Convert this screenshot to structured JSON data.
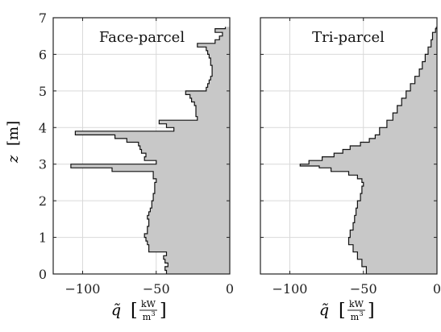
{
  "chart_data": [
    {
      "type": "area",
      "title": "Face-parcel",
      "xlabel_symbol": "q̃",
      "xlabel_unit_num": "kW",
      "xlabel_unit_den": "m",
      "xlabel_unit_exp": "3",
      "ylabel_symbol": "z",
      "ylabel_unit": "m",
      "xlim": [
        -120,
        0
      ],
      "ylim": [
        0,
        7
      ],
      "xticks": [
        -100,
        -50,
        0
      ],
      "xtick_labels": [
        "−100",
        "−50",
        "0"
      ],
      "yticks": [
        0,
        1,
        2,
        3,
        4,
        5,
        6,
        7
      ],
      "ytick_labels": [
        "0",
        "1",
        "2",
        "3",
        "4",
        "5",
        "6",
        "7"
      ],
      "grid": true,
      "fill_color": "#c8c8c8",
      "line_color": "#111111",
      "step": true,
      "profile": [
        [
          0.0,
          -43
        ],
        [
          0.1,
          -44
        ],
        [
          0.2,
          -42
        ],
        [
          0.3,
          -44
        ],
        [
          0.4,
          -45
        ],
        [
          0.5,
          -43
        ],
        [
          0.6,
          -55
        ],
        [
          0.7,
          -55
        ],
        [
          0.8,
          -56
        ],
        [
          0.9,
          -57
        ],
        [
          1.0,
          -58
        ],
        [
          1.1,
          -56
        ],
        [
          1.2,
          -56
        ],
        [
          1.3,
          -55
        ],
        [
          1.4,
          -55
        ],
        [
          1.5,
          -56
        ],
        [
          1.6,
          -55
        ],
        [
          1.7,
          -54
        ],
        [
          1.8,
          -53
        ],
        [
          1.9,
          -53
        ],
        [
          2.0,
          -52
        ],
        [
          2.1,
          -52
        ],
        [
          2.2,
          -51
        ],
        [
          2.3,
          -51
        ],
        [
          2.4,
          -51
        ],
        [
          2.5,
          -50
        ],
        [
          2.6,
          -52
        ],
        [
          2.7,
          -52
        ],
        [
          2.8,
          -80
        ],
        [
          2.9,
          -108
        ],
        [
          3.0,
          -50
        ],
        [
          3.1,
          -58
        ],
        [
          3.2,
          -57
        ],
        [
          3.3,
          -60
        ],
        [
          3.4,
          -61
        ],
        [
          3.5,
          -62
        ],
        [
          3.6,
          -70
        ],
        [
          3.7,
          -78
        ],
        [
          3.8,
          -105
        ],
        [
          3.9,
          -38
        ],
        [
          4.0,
          -43
        ],
        [
          4.1,
          -48
        ],
        [
          4.2,
          -22
        ],
        [
          4.3,
          -23
        ],
        [
          4.4,
          -23
        ],
        [
          4.5,
          -23
        ],
        [
          4.6,
          -24
        ],
        [
          4.7,
          -26
        ],
        [
          4.8,
          -27
        ],
        [
          4.9,
          -30
        ],
        [
          5.0,
          -16
        ],
        [
          5.1,
          -15
        ],
        [
          5.2,
          -14
        ],
        [
          5.3,
          -13
        ],
        [
          5.4,
          -12
        ],
        [
          5.5,
          -12
        ],
        [
          5.6,
          -12
        ],
        [
          5.7,
          -13
        ],
        [
          5.8,
          -13
        ],
        [
          5.9,
          -14
        ],
        [
          6.0,
          -15
        ],
        [
          6.1,
          -16
        ],
        [
          6.2,
          -22
        ],
        [
          6.3,
          -10
        ],
        [
          6.4,
          -7
        ],
        [
          6.5,
          -5
        ],
        [
          6.6,
          -10
        ],
        [
          6.7,
          -3
        ]
      ]
    },
    {
      "type": "area",
      "title": "Tri-parcel",
      "xlabel_symbol": "q̃",
      "xlabel_unit_num": "kW",
      "xlabel_unit_den": "m",
      "xlabel_unit_exp": "3",
      "xlim": [
        -120,
        0
      ],
      "ylim": [
        0,
        7
      ],
      "xticks": [
        -100,
        -50,
        0
      ],
      "xtick_labels": [
        "−100",
        "−50",
        "0"
      ],
      "grid": true,
      "fill_color": "#c8c8c8",
      "line_color": "#111111",
      "step": true,
      "profile": [
        [
          0.0,
          -48
        ],
        [
          0.2,
          -51
        ],
        [
          0.4,
          -54
        ],
        [
          0.6,
          -57
        ],
        [
          0.8,
          -60
        ],
        [
          1.0,
          -59
        ],
        [
          1.2,
          -57
        ],
        [
          1.4,
          -56
        ],
        [
          1.6,
          -55
        ],
        [
          1.8,
          -54
        ],
        [
          2.0,
          -52
        ],
        [
          2.2,
          -51
        ],
        [
          2.4,
          -50
        ],
        [
          2.5,
          -51
        ],
        [
          2.6,
          -54
        ],
        [
          2.7,
          -60
        ],
        [
          2.8,
          -72
        ],
        [
          2.9,
          -80
        ],
        [
          2.95,
          -93
        ],
        [
          3.0,
          -87
        ],
        [
          3.1,
          -78
        ],
        [
          3.2,
          -70
        ],
        [
          3.3,
          -64
        ],
        [
          3.4,
          -59
        ],
        [
          3.5,
          -52
        ],
        [
          3.6,
          -46
        ],
        [
          3.7,
          -42
        ],
        [
          3.8,
          -39
        ],
        [
          4.0,
          -34
        ],
        [
          4.2,
          -30
        ],
        [
          4.4,
          -27
        ],
        [
          4.6,
          -24
        ],
        [
          4.8,
          -21
        ],
        [
          5.0,
          -18
        ],
        [
          5.2,
          -15
        ],
        [
          5.4,
          -12
        ],
        [
          5.6,
          -10
        ],
        [
          5.8,
          -8
        ],
        [
          6.0,
          -6
        ],
        [
          6.2,
          -4
        ],
        [
          6.4,
          -3
        ],
        [
          6.6,
          -1
        ],
        [
          6.7,
          -0.5
        ]
      ]
    }
  ]
}
